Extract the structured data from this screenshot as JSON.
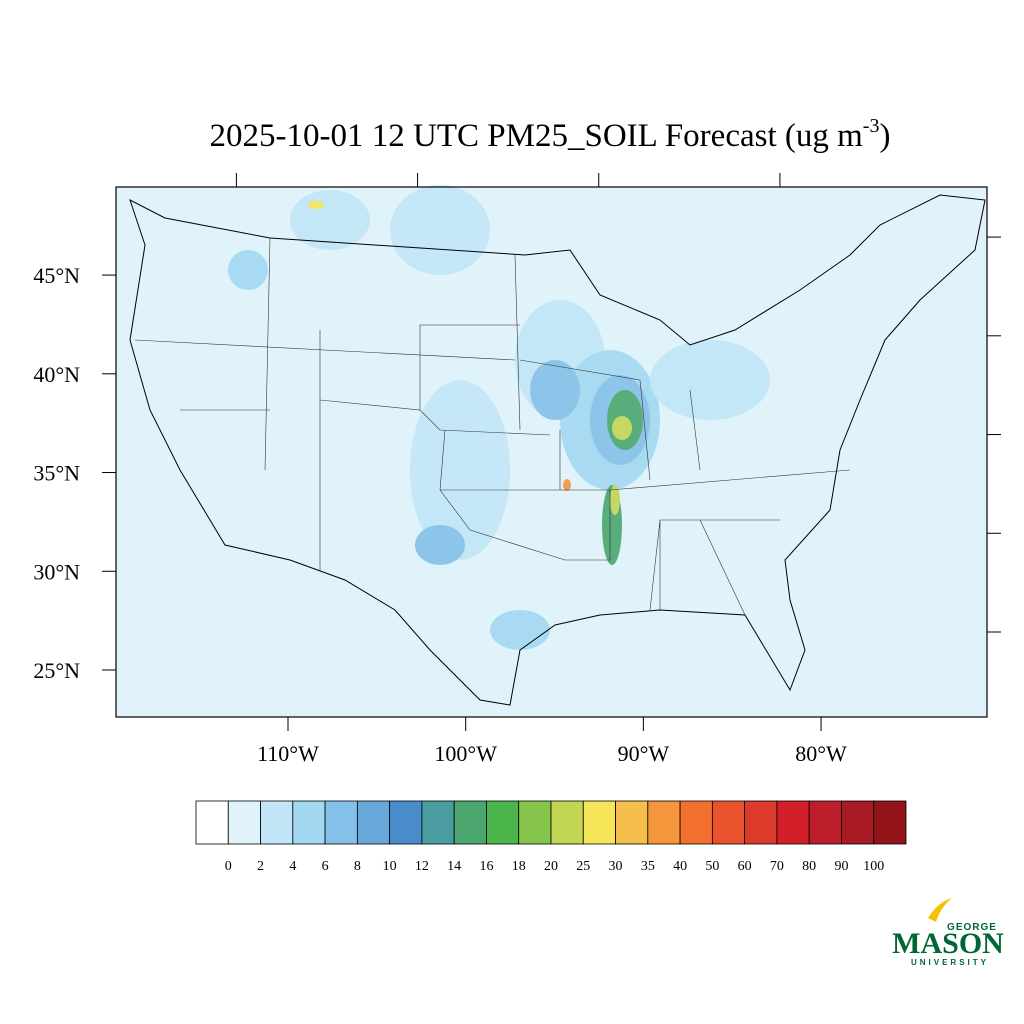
{
  "chart_data": {
    "type": "map",
    "title": "2025-10-01 12 UTC PM25_SOIL Forecast (ug m",
    "title_superscript": "-3",
    "title_end": ")",
    "xlim": [
      -119.68,
      -70.66
    ],
    "ylim": [
      22.62,
      49.46
    ],
    "xticks": [
      {
        "value": -110,
        "label": "110°W"
      },
      {
        "value": -100,
        "label": "100°W"
      },
      {
        "value": -90,
        "label": "90°W"
      },
      {
        "value": -80,
        "label": "80°W"
      }
    ],
    "yticks": [
      {
        "value": 45,
        "label": "45°N"
      },
      {
        "value": 40,
        "label": "40°N"
      },
      {
        "value": 35,
        "label": "35°N"
      },
      {
        "value": 30,
        "label": "30°N"
      },
      {
        "value": 25,
        "label": "25°N"
      }
    ],
    "colorbar": {
      "levels": [
        0,
        2,
        4,
        6,
        8,
        10,
        12,
        14,
        16,
        18,
        20,
        25,
        30,
        35,
        40,
        50,
        60,
        70,
        80,
        90,
        100
      ],
      "colors": [
        "#ffffff",
        "#e0f3fb",
        "#c2e6f7",
        "#a2d8f2",
        "#84c1e8",
        "#69a8da",
        "#4a8bc9",
        "#4a9ca0",
        "#4aa66e",
        "#4bb44a",
        "#86c54c",
        "#c3d653",
        "#f6e558",
        "#f6bf4b",
        "#f5963c",
        "#f2702f",
        "#e9522d",
        "#dc3a2a",
        "#d21f2a",
        "#be1e2a",
        "#a91b24",
        "#921419"
      ]
    }
  },
  "logo": {
    "top": "GEORGE",
    "main": "MASON",
    "bottom": "UNIVERSITY"
  }
}
